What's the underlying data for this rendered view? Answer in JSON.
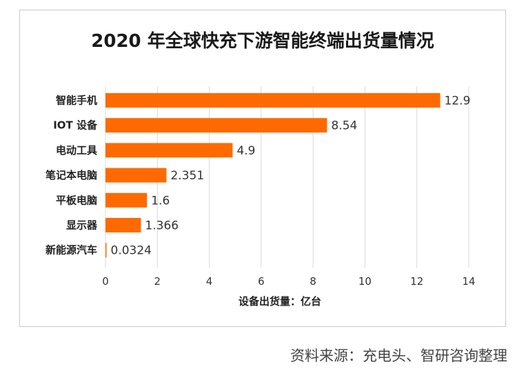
{
  "source": "资料来源：充电头、智研咨询整理",
  "chart_data": {
    "type": "bar",
    "orientation": "horizontal",
    "title": "2020 年全球快充下游智能终端出货量情况",
    "xlabel": "设备出货量：亿台",
    "ylabel": "",
    "categories": [
      "智能手机",
      "IOT 设备",
      "电动工具",
      "笔记本电脑",
      "平板电脑",
      "显示器",
      "新能源汽车"
    ],
    "values": [
      12.9,
      8.54,
      4.9,
      2.351,
      1.6,
      1.366,
      0.0324
    ],
    "value_labels": [
      "12.9",
      "8.54",
      "4.9",
      "2.351",
      "1.6",
      "1.366",
      "0.0324"
    ],
    "xlim": [
      0,
      14
    ],
    "xticks": [
      0,
      2,
      4,
      6,
      8,
      10,
      12,
      14
    ],
    "grid": true,
    "bar_color": "#ff6a00"
  }
}
